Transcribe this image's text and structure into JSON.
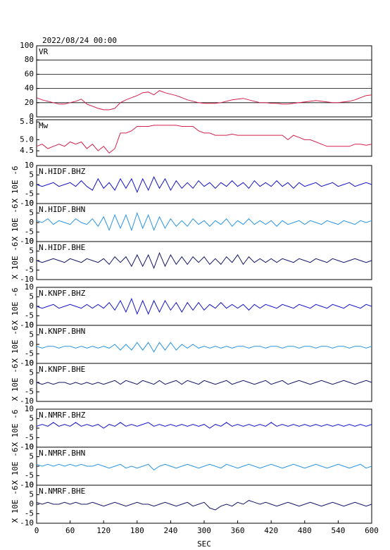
{
  "chart_data": {
    "type": "line",
    "title": "2022/08/24 00:00",
    "xlabel": "SEC",
    "x": [
      0,
      10,
      20,
      30,
      40,
      50,
      60,
      70,
      80,
      90,
      100,
      110,
      120,
      130,
      140,
      150,
      160,
      170,
      180,
      190,
      200,
      210,
      220,
      230,
      240,
      250,
      260,
      270,
      280,
      290,
      300,
      310,
      320,
      330,
      340,
      350,
      360,
      370,
      380,
      390,
      400,
      410,
      420,
      430,
      440,
      450,
      460,
      470,
      480,
      490,
      500,
      510,
      520,
      530,
      540,
      550,
      560,
      570,
      580,
      590,
      600
    ],
    "xlim": [
      0,
      600
    ],
    "xticks": [
      0,
      60,
      120,
      180,
      240,
      300,
      360,
      420,
      480,
      540,
      600
    ],
    "panels": [
      {
        "name": "VR",
        "color": "#d4204c",
        "ylim": [
          0,
          100
        ],
        "yticks": [
          0,
          20,
          40,
          60,
          80,
          100
        ],
        "grid": true,
        "values": [
          27,
          24,
          22,
          20,
          18,
          18,
          20,
          22,
          25,
          18,
          15,
          12,
          10,
          10,
          12,
          20,
          24,
          27,
          30,
          34,
          35,
          31,
          37,
          34,
          32,
          30,
          27,
          24,
          22,
          20,
          19,
          19,
          19,
          20,
          22,
          24,
          25,
          26,
          24,
          22,
          20,
          20,
          19,
          19,
          18,
          18,
          19,
          20,
          21,
          22,
          23,
          22,
          21,
          20,
          20,
          21,
          22,
          24,
          27,
          30,
          31
        ]
      },
      {
        "name": "Mw",
        "color": "#d4204c",
        "ylim": [
          4.25,
          5.9
        ],
        "yticks": [
          4.5,
          {
            "value": 5,
            "label": "5.0"
          },
          5.8
        ],
        "grid": false,
        "values": [
          4.7,
          4.8,
          4.6,
          4.7,
          4.8,
          4.7,
          4.9,
          4.8,
          4.9,
          4.6,
          4.8,
          4.5,
          4.7,
          4.4,
          4.6,
          5.3,
          5.3,
          5.4,
          5.6,
          5.6,
          5.6,
          5.65,
          5.65,
          5.65,
          5.65,
          5.65,
          5.6,
          5.6,
          5.6,
          5.4,
          5.3,
          5.3,
          5.2,
          5.2,
          5.2,
          5.25,
          5.2,
          5.2,
          5.2,
          5.2,
          5.2,
          5.2,
          5.2,
          5.2,
          5.2,
          5.0,
          5.2,
          5.1,
          5.0,
          5.0,
          4.9,
          4.8,
          4.7,
          4.7,
          4.7,
          4.7,
          4.7,
          4.8,
          4.8,
          4.75,
          4.8
        ]
      },
      {
        "name": "N.HIDF.BHZ",
        "ylabel": "X 10E -6",
        "color": "#1414c8",
        "ylim": [
          -10,
          10
        ],
        "yticks": [
          10,
          5,
          0,
          -5,
          -10
        ],
        "grid": false,
        "values": [
          0,
          -1,
          0,
          1,
          -1,
          0,
          1,
          -1,
          2,
          -1,
          -3,
          3,
          -2,
          1,
          -3,
          3,
          -2,
          3,
          -4,
          3,
          -3,
          4,
          -2,
          3,
          -3,
          2,
          -2,
          1,
          -2,
          2,
          -1,
          1,
          -2,
          1,
          -1,
          2,
          -1,
          1,
          -2,
          2,
          -1,
          1,
          -1,
          2,
          -1,
          1,
          -2,
          1,
          -1,
          0,
          1,
          -1,
          0,
          1,
          -1,
          0,
          1,
          -1,
          0,
          1,
          0
        ]
      },
      {
        "name": "N.HIDF.BHN",
        "ylabel": "X 10E -6",
        "color": "#2a94e4",
        "ylim": [
          -10,
          10
        ],
        "yticks": [
          10,
          5,
          0,
          -5,
          -10
        ],
        "grid": false,
        "values": [
          1,
          0,
          2,
          -1,
          1,
          0,
          -1,
          2,
          0,
          -1,
          2,
          -2,
          3,
          -4,
          4,
          -3,
          4,
          -4,
          5,
          -3,
          4,
          -4,
          3,
          -3,
          2,
          -2,
          1,
          -2,
          2,
          -1,
          1,
          -2,
          1,
          -1,
          2,
          -2,
          1,
          -1,
          2,
          -1,
          1,
          -1,
          1,
          -2,
          1,
          -1,
          0,
          1,
          -1,
          1,
          0,
          -1,
          1,
          0,
          -1,
          1,
          0,
          -1,
          1,
          0,
          1
        ]
      },
      {
        "name": "N.HIDF.BHE",
        "ylabel": "X 10E -6",
        "color": "#14146a",
        "ylim": [
          -10,
          10
        ],
        "yticks": [
          10,
          5,
          0,
          -5,
          -10
        ],
        "grid": false,
        "values": [
          0,
          -1,
          0,
          1,
          0,
          -1,
          1,
          0,
          -1,
          1,
          0,
          -1,
          1,
          -2,
          2,
          -1,
          2,
          -3,
          3,
          -3,
          3,
          -4,
          4,
          -3,
          3,
          -2,
          2,
          -2,
          2,
          -1,
          2,
          -2,
          1,
          -2,
          2,
          -1,
          3,
          -2,
          2,
          -1,
          1,
          -1,
          1,
          -1,
          1,
          0,
          -1,
          1,
          0,
          -1,
          1,
          0,
          -1,
          1,
          0,
          -1,
          0,
          1,
          0,
          -1,
          0
        ]
      },
      {
        "name": "N.KNPF.BHZ",
        "ylabel": "X 10E -6",
        "color": "#1414c8",
        "ylim": [
          -10,
          10
        ],
        "yticks": [
          10,
          5,
          0,
          -5,
          -10
        ],
        "grid": false,
        "values": [
          0,
          -1,
          0,
          1,
          -1,
          0,
          1,
          0,
          -1,
          1,
          -1,
          1,
          -1,
          2,
          -2,
          3,
          -3,
          4,
          -4,
          3,
          -4,
          3,
          -3,
          3,
          -2,
          2,
          -3,
          2,
          -2,
          2,
          -2,
          1,
          -1,
          2,
          -1,
          1,
          -1,
          1,
          -2,
          1,
          -1,
          1,
          0,
          -1,
          1,
          0,
          -1,
          1,
          0,
          -1,
          1,
          0,
          -1,
          1,
          0,
          -1,
          1,
          0,
          -1,
          1,
          0
        ]
      },
      {
        "name": "N.KNPF.BHN",
        "ylabel": "X 10E -6",
        "color": "#2a94e4",
        "ylim": [
          -10,
          10
        ],
        "yticks": [
          10,
          5,
          0,
          -5,
          -10
        ],
        "grid": false,
        "values": [
          -1,
          -2,
          -1,
          -1,
          -2,
          -1,
          -1,
          -2,
          -1,
          -2,
          -1,
          -2,
          -1,
          -2,
          0,
          -3,
          0,
          -3,
          1,
          -3,
          1,
          -4,
          1,
          -3,
          1,
          -3,
          0,
          -2,
          0,
          -2,
          -1,
          -2,
          -1,
          -2,
          -1,
          -2,
          -1,
          -1,
          -2,
          -1,
          -1,
          -2,
          -1,
          -1,
          -2,
          -1,
          -1,
          -2,
          -1,
          -1,
          -2,
          -1,
          -1,
          -2,
          -1,
          -1,
          -2,
          -1,
          -1,
          -2,
          -1
        ]
      },
      {
        "name": "N.KNPF.BHE",
        "ylabel": "X 10E -6",
        "color": "#14146a",
        "ylim": [
          -10,
          10
        ],
        "yticks": [
          10,
          5,
          0,
          -5,
          -10
        ],
        "grid": false,
        "values": [
          0,
          -1,
          0,
          -1,
          0,
          0,
          -1,
          0,
          -1,
          0,
          -1,
          0,
          -1,
          0,
          1,
          -1,
          1,
          0,
          -1,
          1,
          0,
          -1,
          1,
          -1,
          0,
          1,
          -1,
          1,
          0,
          -1,
          1,
          0,
          -1,
          0,
          1,
          -1,
          0,
          1,
          0,
          -1,
          0,
          1,
          -1,
          0,
          1,
          -1,
          0,
          1,
          0,
          -1,
          0,
          1,
          0,
          -1,
          0,
          1,
          0,
          -1,
          0,
          1,
          0
        ]
      },
      {
        "name": "N.NMRF.BHZ",
        "ylabel": "X 10E -6",
        "color": "#1414c8",
        "ylim": [
          -10,
          10
        ],
        "yticks": [
          10,
          5,
          0,
          -5,
          -10
        ],
        "grid": false,
        "values": [
          1,
          2,
          1,
          3,
          1,
          2,
          1,
          3,
          1,
          2,
          1,
          2,
          0,
          2,
          1,
          3,
          1,
          2,
          1,
          2,
          3,
          1,
          2,
          1,
          2,
          1,
          2,
          1,
          2,
          1,
          2,
          0,
          2,
          1,
          3,
          1,
          2,
          1,
          2,
          1,
          2,
          1,
          3,
          1,
          2,
          1,
          2,
          1,
          2,
          1,
          2,
          1,
          2,
          1,
          2,
          1,
          2,
          1,
          2,
          1,
          2
        ]
      },
      {
        "name": "N.NMRF.BHN",
        "ylabel": "X 10E -6",
        "color": "#2a94e4",
        "ylim": [
          -10,
          10
        ],
        "yticks": [
          10,
          5,
          0,
          -5,
          -10
        ],
        "grid": false,
        "values": [
          1,
          0,
          1,
          0,
          1,
          0,
          1,
          0,
          1,
          0,
          0,
          1,
          0,
          -1,
          0,
          1,
          -1,
          0,
          -1,
          0,
          1,
          -2,
          0,
          1,
          0,
          -1,
          0,
          1,
          0,
          -1,
          0,
          1,
          0,
          -1,
          1,
          0,
          -1,
          0,
          1,
          0,
          -1,
          0,
          1,
          0,
          -1,
          0,
          1,
          0,
          -1,
          0,
          1,
          0,
          -1,
          0,
          1,
          0,
          -1,
          0,
          1,
          -1,
          0
        ]
      },
      {
        "name": "N.NMRF.BHE",
        "ylabel": "X 10E -6",
        "color": "#14146a",
        "ylim": [
          -10,
          10
        ],
        "yticks": [
          10,
          5,
          0,
          -5,
          -10
        ],
        "grid": false,
        "values": [
          1,
          0,
          1,
          0,
          0,
          1,
          0,
          1,
          0,
          0,
          1,
          0,
          -1,
          0,
          1,
          0,
          -1,
          0,
          1,
          0,
          0,
          -1,
          0,
          1,
          0,
          -1,
          0,
          1,
          -1,
          0,
          1,
          -2,
          -3,
          -1,
          0,
          -1,
          1,
          0,
          2,
          1,
          0,
          1,
          0,
          -1,
          0,
          1,
          0,
          -1,
          0,
          1,
          0,
          -1,
          0,
          1,
          0,
          -1,
          0,
          1,
          0,
          -1,
          0
        ]
      }
    ]
  }
}
